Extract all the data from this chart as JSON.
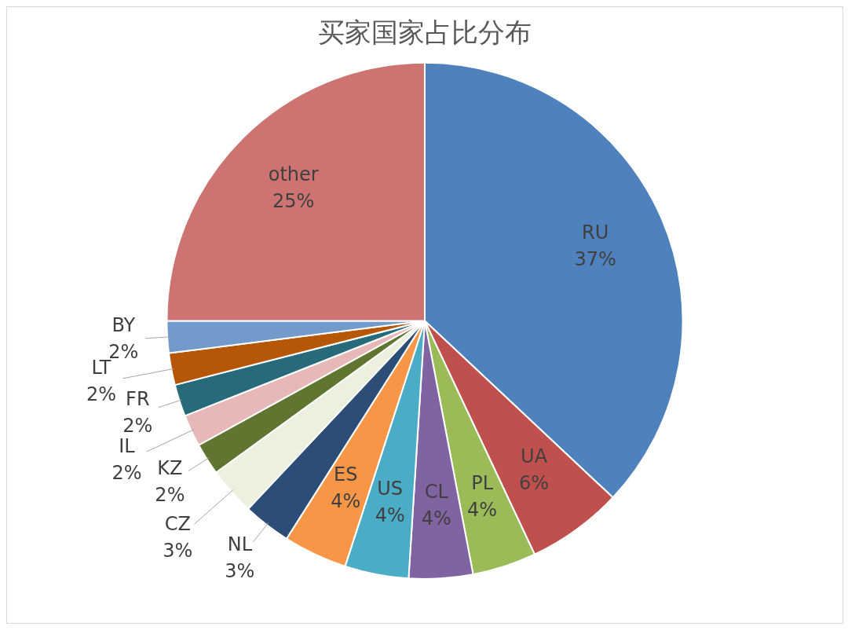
{
  "chart_data": {
    "type": "pie",
    "title": "买家国家占比分布",
    "categories": [
      "RU",
      "UA",
      "PL",
      "CL",
      "US",
      "ES",
      "NL",
      "CZ",
      "KZ",
      "IL",
      "FR",
      "LT",
      "BY",
      "other"
    ],
    "values": [
      37,
      6,
      4,
      4,
      4,
      4,
      3,
      3,
      2,
      2,
      2,
      2,
      2,
      25
    ],
    "value_labels": [
      "37%",
      "6%",
      "4%",
      "4%",
      "4%",
      "4%",
      "3%",
      "3%",
      "2%",
      "2%",
      "2%",
      "2%",
      "2%",
      "25%"
    ],
    "colors": [
      "#4f81bd",
      "#c0504d",
      "#9bbb59",
      "#8064a2",
      "#4bacc6",
      "#f79646",
      "#2c4d75",
      "#ebf1de",
      "#5f7530",
      "#e6b9b8",
      "#276a7c",
      "#b65708",
      "#729aca",
      "#cd7371"
    ]
  }
}
